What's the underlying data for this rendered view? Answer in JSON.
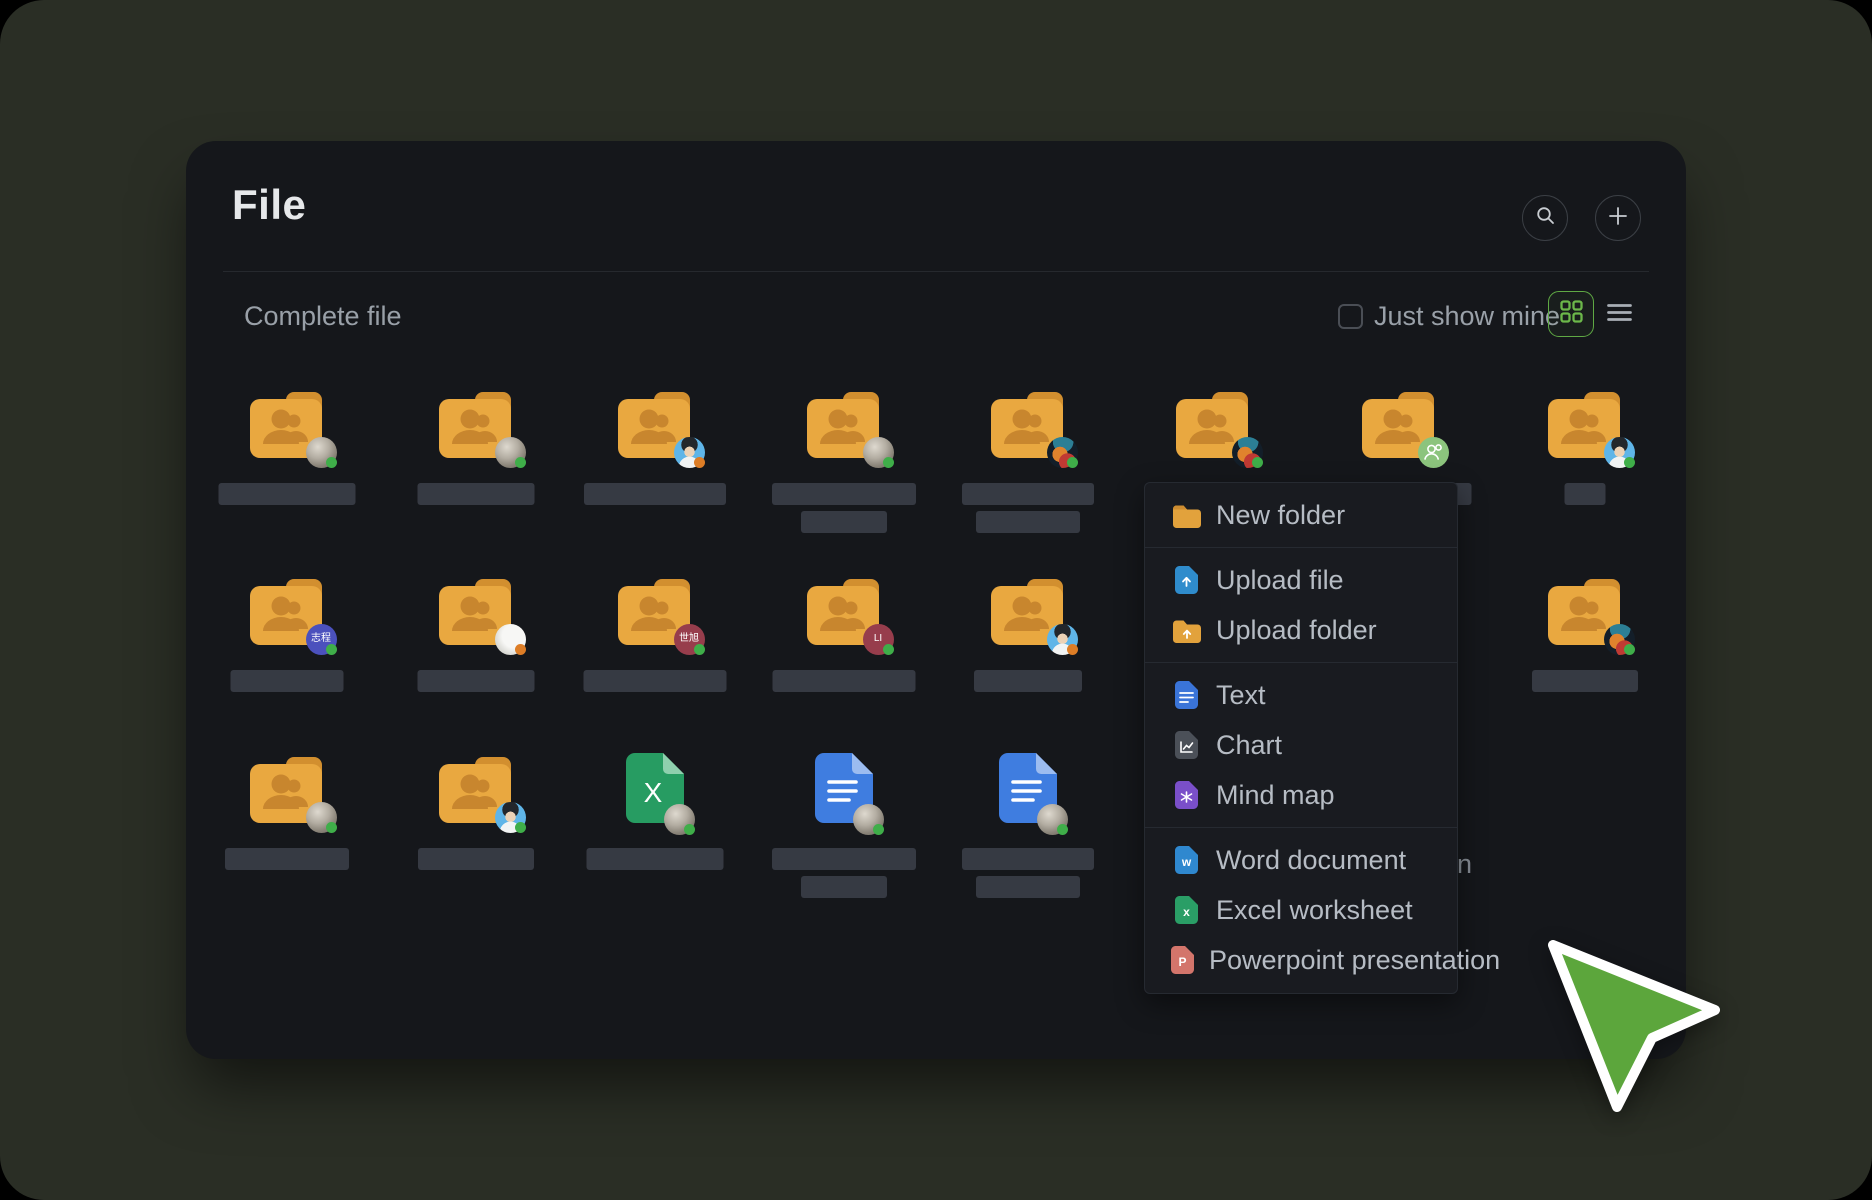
{
  "app": {
    "title": "File"
  },
  "header": {
    "search_icon": "magnifier",
    "add_icon": "plus"
  },
  "toolbar": {
    "section_label": "Complete file",
    "filter_label": "Just show mine",
    "filter_checked": false,
    "view_mode": "grid"
  },
  "colors": {
    "accent_green": "#6cb84a",
    "folder_orange": "#e9a840",
    "status_online": "#3fae49",
    "status_busy": "#dd7d26",
    "panel_bg": "#15171b",
    "desktop_bg": "#2a2e25",
    "cursor_green": "#5ca63c"
  },
  "grid": {
    "peek_text": "n",
    "items": [
      {
        "row": 1,
        "col": 1,
        "kind": "shared-folder",
        "avatar": "moon",
        "dot": "green",
        "bar": 137
      },
      {
        "row": 1,
        "col": 2,
        "kind": "shared-folder",
        "avatar": "moon",
        "dot": "green",
        "bar": 117
      },
      {
        "row": 1,
        "col": 3,
        "kind": "shared-folder",
        "avatar": "boy",
        "dot": "orange",
        "bar": 142
      },
      {
        "row": 1,
        "col": 4,
        "kind": "shared-folder",
        "avatar": "moon",
        "dot": "green",
        "bar": 144,
        "bar2": 86
      },
      {
        "row": 1,
        "col": 5,
        "kind": "shared-folder",
        "avatar": "toon",
        "dot": "green",
        "bar": 132,
        "bar2": 104
      },
      {
        "row": 1,
        "col": 6,
        "kind": "shared-folder",
        "avatar": "toon",
        "dot": "green",
        "bar": 0
      },
      {
        "row": 1,
        "col": 7,
        "kind": "shared-folder",
        "avatar": "green-person",
        "dot": null,
        "bar": 145
      },
      {
        "row": 1,
        "col": 8,
        "kind": "shared-folder",
        "avatar": "boy",
        "dot": "green",
        "bar": 41
      },
      {
        "row": 2,
        "col": 1,
        "kind": "shared-folder",
        "avatar": "purple-text",
        "avatar_text": "志程",
        "dot": "green",
        "bar": 113
      },
      {
        "row": 2,
        "col": 2,
        "kind": "shared-folder",
        "avatar": "cat",
        "dot": "orange",
        "bar": 117
      },
      {
        "row": 2,
        "col": 3,
        "kind": "shared-folder",
        "avatar": "maroon-text",
        "avatar_text": "世旭",
        "dot": "green",
        "bar": 143
      },
      {
        "row": 2,
        "col": 4,
        "kind": "shared-folder",
        "avatar": "maroon-text",
        "avatar_text": "LI",
        "dot": "green",
        "bar": 143
      },
      {
        "row": 2,
        "col": 5,
        "kind": "shared-folder",
        "avatar": "boy",
        "dot": "orange",
        "bar": 108
      },
      {
        "row": 2,
        "col": 8,
        "kind": "shared-folder",
        "avatar": "toon",
        "dot": "green",
        "bar": 106
      },
      {
        "row": 3,
        "col": 1,
        "kind": "shared-folder",
        "avatar": "moon",
        "dot": "green",
        "bar": 124
      },
      {
        "row": 3,
        "col": 2,
        "kind": "shared-folder",
        "avatar": "boy",
        "dot": "green",
        "bar": 116
      },
      {
        "row": 3,
        "col": 3,
        "kind": "excel-file",
        "avatar": "moon",
        "dot": "green",
        "bar": 137
      },
      {
        "row": 3,
        "col": 4,
        "kind": "doc-file",
        "avatar": "moon",
        "dot": "green",
        "bar": 144,
        "bar2": 86
      },
      {
        "row": 3,
        "col": 5,
        "kind": "doc-file",
        "avatar": "moon",
        "dot": "green",
        "bar": 132,
        "bar2": 104
      }
    ]
  },
  "context_menu": {
    "groups": [
      [
        {
          "label": "New folder",
          "icon": "folder"
        }
      ],
      [
        {
          "label": "Upload file",
          "icon": "file-upload"
        },
        {
          "label": "Upload folder",
          "icon": "folder-upload"
        }
      ],
      [
        {
          "label": "Text",
          "icon": "file-text"
        },
        {
          "label": "Chart",
          "icon": "file-chart"
        },
        {
          "label": "Mind map",
          "icon": "file-mindmap"
        }
      ],
      [
        {
          "label": "Word document",
          "icon": "file-word",
          "letter": "w"
        },
        {
          "label": "Excel worksheet",
          "icon": "file-excel",
          "letter": "x"
        },
        {
          "label": "Powerpoint presentation",
          "icon": "file-ppt",
          "letter": "P"
        }
      ]
    ]
  },
  "cursor": {
    "style": "green-arrow"
  }
}
